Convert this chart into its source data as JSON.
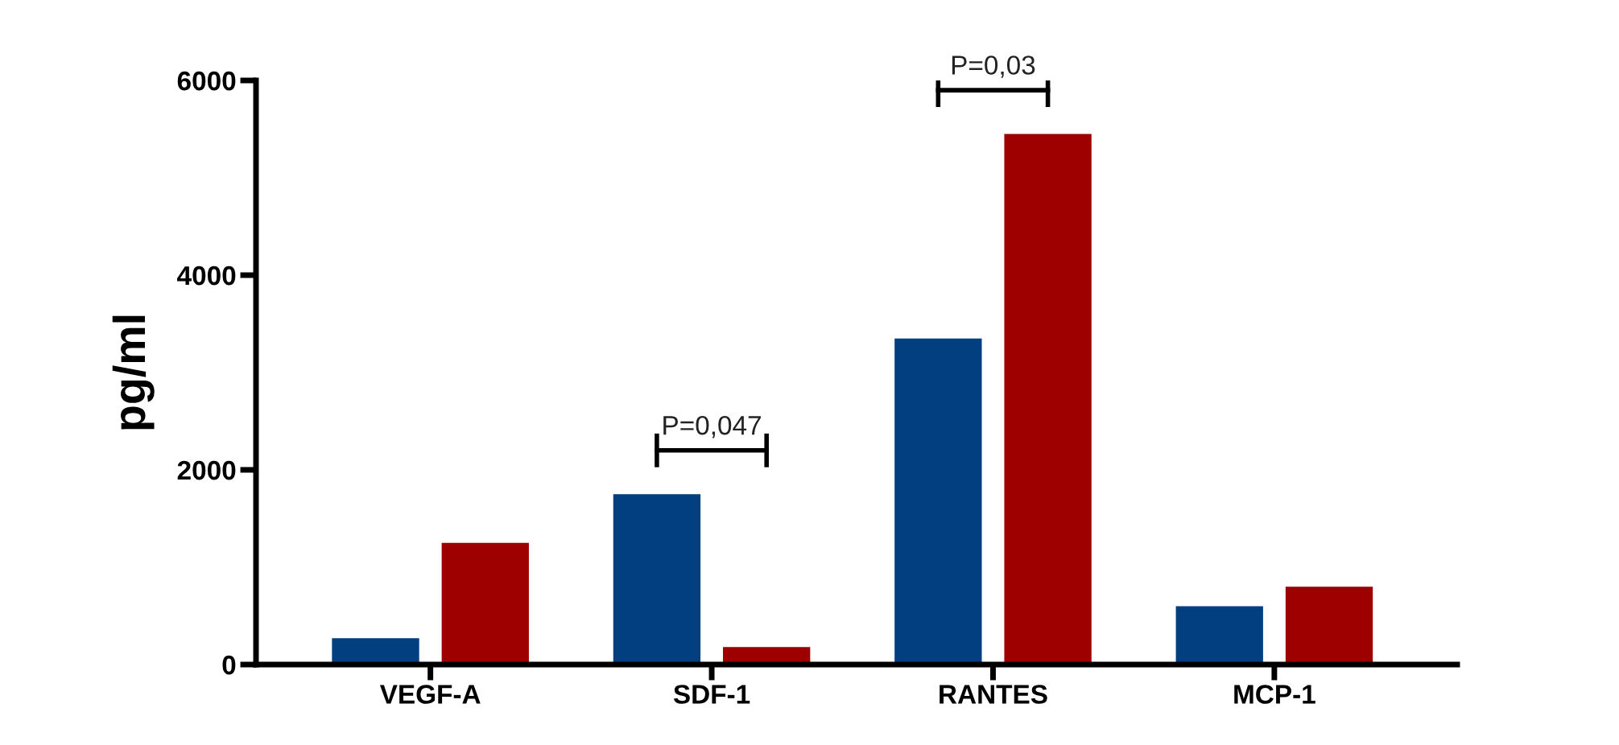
{
  "chart_data": {
    "type": "bar",
    "ylabel": "pg/ml",
    "categories": [
      "VEGF-A",
      "SDF-1",
      "RANTES",
      "MCP-1"
    ],
    "series": [
      {
        "color": "#023f80",
        "values": [
          270,
          1750,
          3350,
          600
        ]
      },
      {
        "color": "#9e0000",
        "values": [
          1250,
          180,
          5450,
          800
        ]
      }
    ],
    "ylim": [
      0,
      6000
    ],
    "yticks": [
      0,
      2000,
      4000,
      6000
    ],
    "grid": false,
    "legend": false,
    "annotations": [
      "P=0,047",
      "P=0,03"
    ]
  }
}
